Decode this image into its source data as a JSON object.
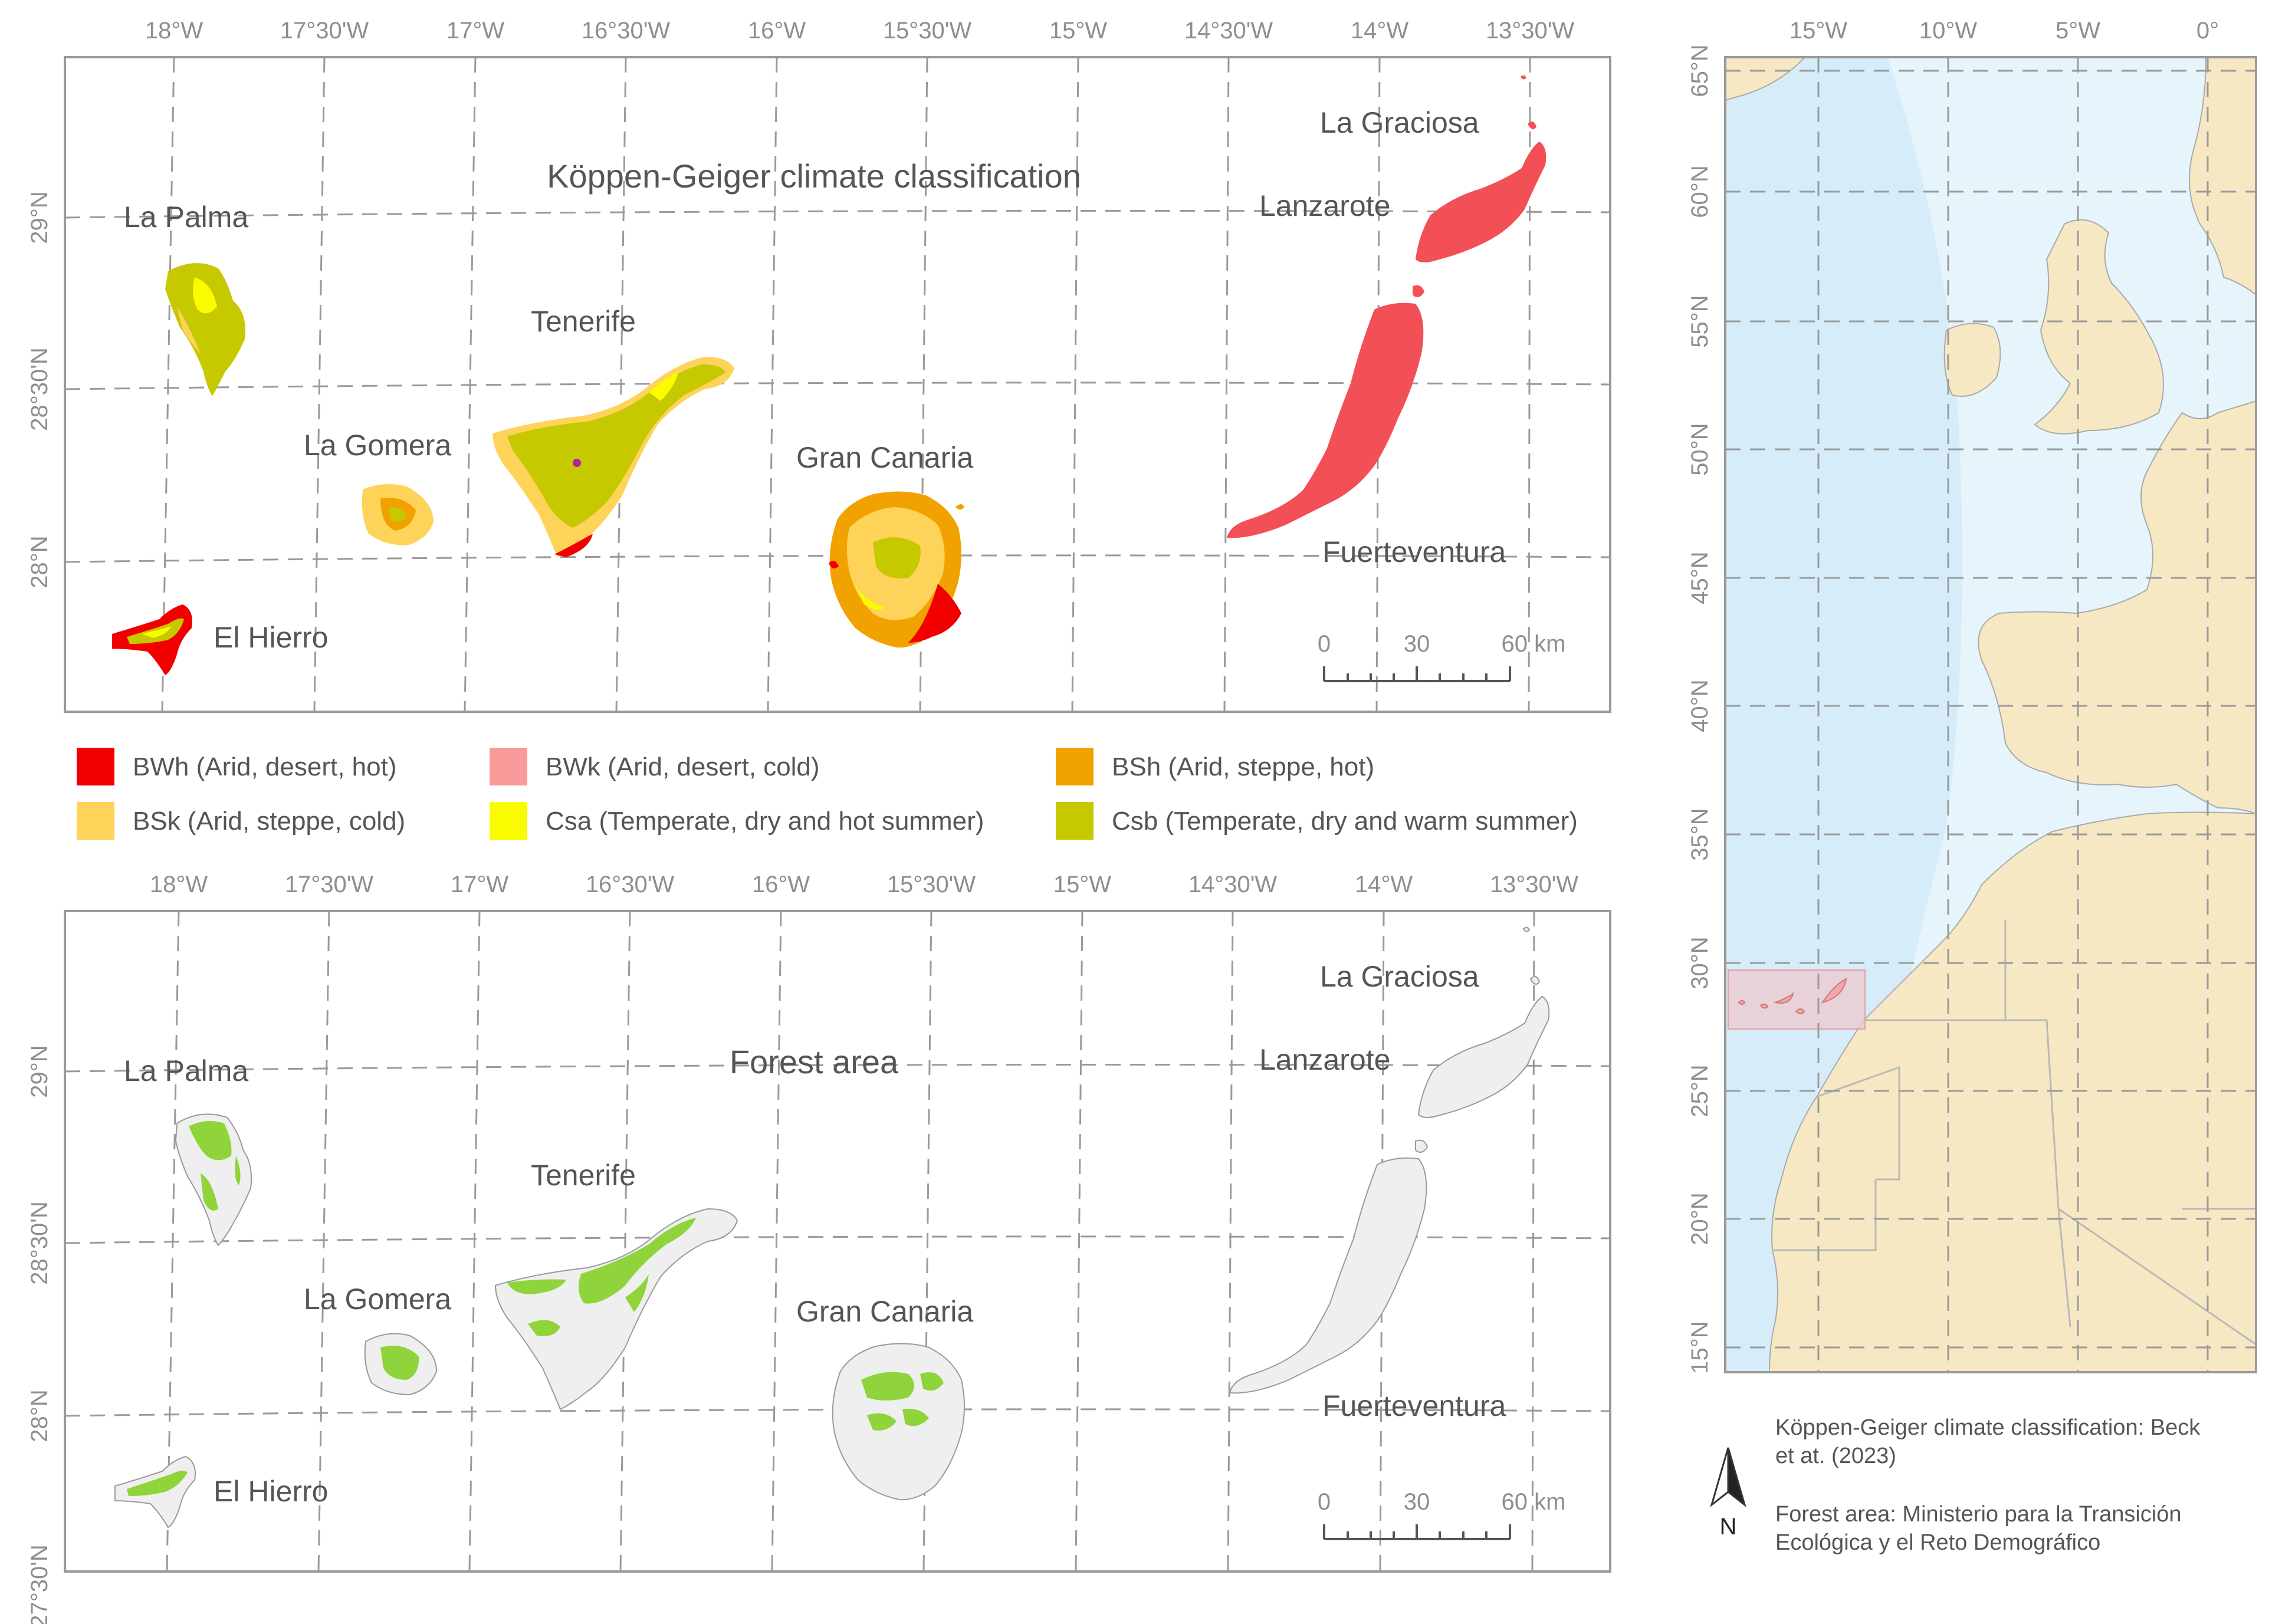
{
  "colors": {
    "BWh": "#f20000",
    "BWk": "#f89a9a",
    "BSh": "#f2a200",
    "BSk": "#fed35a",
    "Csa": "#fafa00",
    "Csb": "#c6c800",
    "forest": "#8fd43a",
    "land_grey": "#f0f0f0",
    "ocean": "#d6edf9",
    "land_overview": "#f7e8c4"
  },
  "map_top": {
    "title": "Köppen-Geiger climate classification",
    "lon_ticks": [
      "18°W",
      "17°30'W",
      "17°W",
      "16°30'W",
      "16°W",
      "15°30'W",
      "15°W",
      "14°30'W",
      "14°W",
      "13°30'W"
    ],
    "lat_ticks": [
      "29°N",
      "28°30'N",
      "28°N"
    ],
    "islands": [
      {
        "name": "La Palma"
      },
      {
        "name": "La Gomera"
      },
      {
        "name": "El Hierro"
      },
      {
        "name": "Tenerife"
      },
      {
        "name": "Gran Canaria"
      },
      {
        "name": "La Graciosa"
      },
      {
        "name": "Lanzarote"
      },
      {
        "name": "Fuerteventura"
      }
    ],
    "scale": {
      "labels": [
        "0",
        "30",
        "60 km"
      ]
    }
  },
  "legend": [
    {
      "code": "BWh",
      "label": "BWh (Arid, desert, hot)"
    },
    {
      "code": "BWk",
      "label": "BWk (Arid, desert, cold)"
    },
    {
      "code": "BSh",
      "label": "BSh (Arid, steppe, hot)"
    },
    {
      "code": "BSk",
      "label": "BSk (Arid, steppe, cold)"
    },
    {
      "code": "Csa",
      "label": "Csa (Temperate, dry and hot summer)"
    },
    {
      "code": "Csb",
      "label": "Csb (Temperate, dry and warm summer)"
    }
  ],
  "map_bottom": {
    "title": "Forest area",
    "lon_ticks": [
      "18°W",
      "17°30'W",
      "17°W",
      "16°30'W",
      "16°W",
      "15°30'W",
      "15°W",
      "14°30'W",
      "14°W",
      "13°30'W"
    ],
    "lat_ticks": [
      "29°N",
      "28°30'N",
      "28°N",
      "27°30'N"
    ],
    "islands": [
      {
        "name": "La Palma"
      },
      {
        "name": "La Gomera"
      },
      {
        "name": "El Hierro"
      },
      {
        "name": "Tenerife"
      },
      {
        "name": "Gran Canaria"
      },
      {
        "name": "La Graciosa"
      },
      {
        "name": "Lanzarote"
      },
      {
        "name": "Fuerteventura"
      }
    ],
    "scale": {
      "labels": [
        "0",
        "30",
        "60 km"
      ]
    }
  },
  "overview": {
    "lon_ticks": [
      "15°W",
      "10°W",
      "5°W",
      "0°"
    ],
    "lat_ticks": [
      "65°N",
      "60°N",
      "55°N",
      "50°N",
      "45°N",
      "40°N",
      "35°N",
      "30°N",
      "25°N",
      "20°N",
      "15°N"
    ]
  },
  "north_arrow": {
    "label": "N"
  },
  "credits": [
    {
      "lines": [
        "Köppen-Geiger climate classification: Beck",
        "et at. (2023)"
      ]
    },
    {
      "lines": [
        "Forest area: Ministerio para la Transición",
        "Ecológica y el Reto Demográfico"
      ]
    }
  ]
}
